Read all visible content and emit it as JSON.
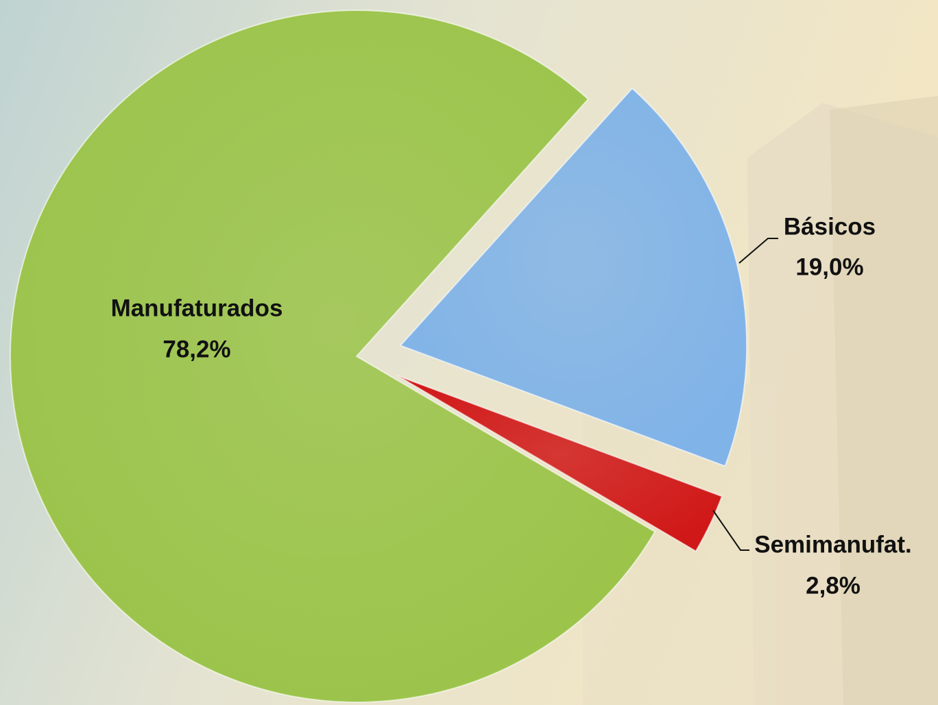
{
  "chart_data": {
    "type": "pie",
    "categories": [
      "Manufaturados",
      "Básicos",
      "Semimanufat."
    ],
    "values": [
      78.2,
      19.0,
      2.8
    ],
    "value_labels": [
      "78,2%",
      "19,0%",
      "2,8%"
    ],
    "colors": [
      "#9bc44a",
      "#80b3e8",
      "#d01818"
    ],
    "exploded": [
      false,
      true,
      true
    ]
  }
}
